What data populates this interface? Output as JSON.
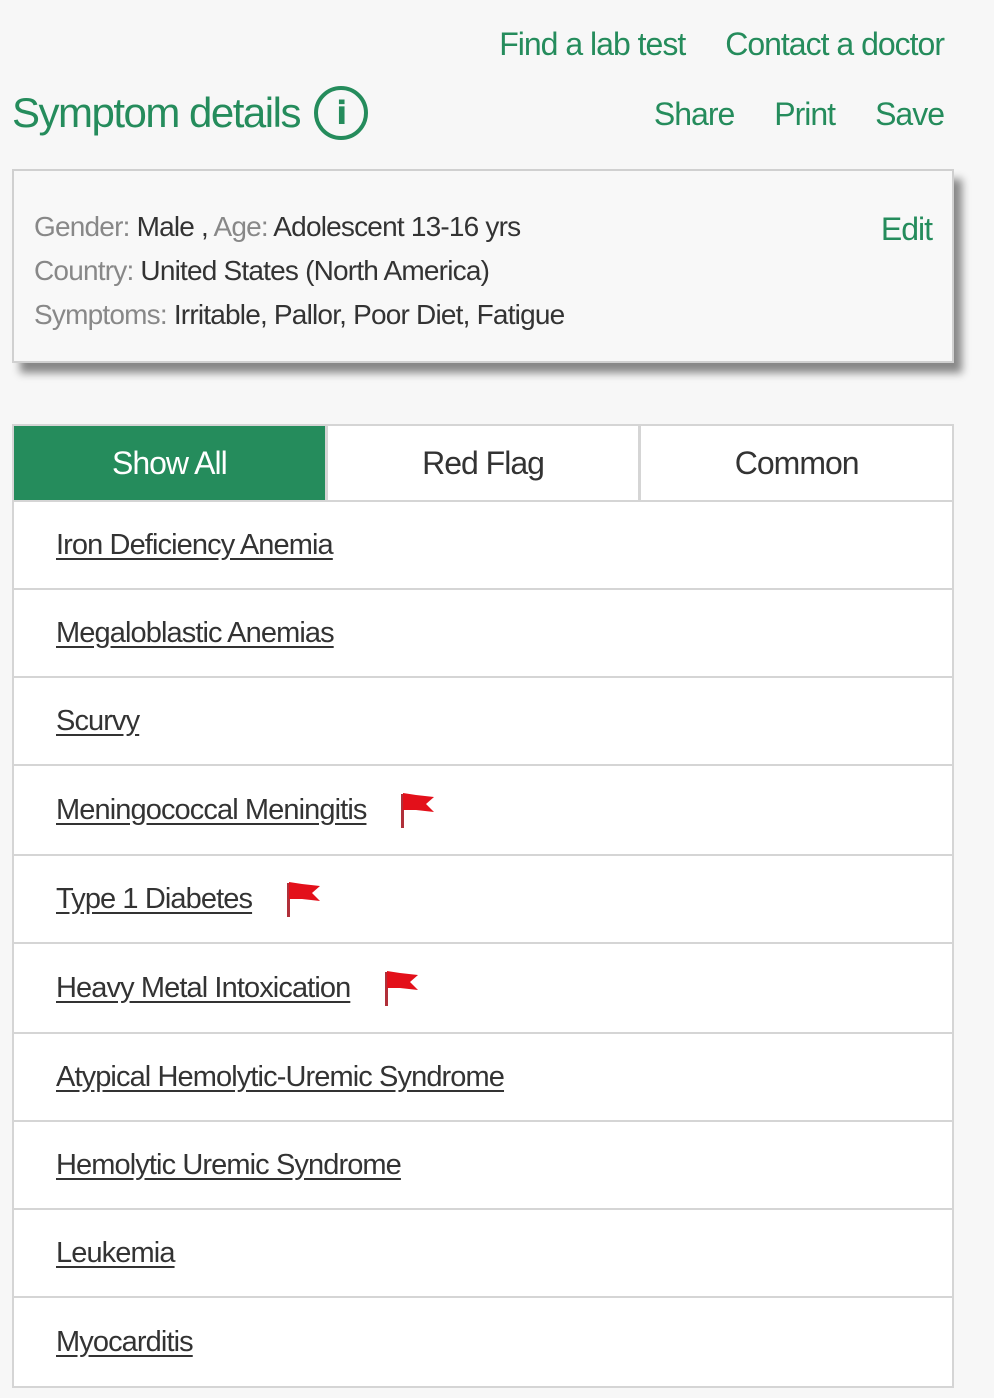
{
  "colors": {
    "accent": "#258c5c",
    "flag": "#e3101a",
    "text": "#333333",
    "label": "#888888"
  },
  "top_links": [
    "Find a lab test",
    "Contact a doctor"
  ],
  "header": {
    "title": "Symptom details",
    "info_icon": "info-circle-icon"
  },
  "actions": [
    "Share",
    "Print",
    "Save"
  ],
  "summary": {
    "gender_label": "Gender:",
    "gender": "Male ,",
    "age_label": "Age:",
    "age": "Adolescent 13-16 yrs",
    "country_label": "Country:",
    "country": "United States (North America)",
    "symptoms_label": "Symptoms:",
    "symptoms": "Irritable, Pallor, Poor Diet, Fatigue",
    "edit": "Edit"
  },
  "tabs": [
    {
      "label": "Show All",
      "active": true
    },
    {
      "label": "Red Flag",
      "active": false
    },
    {
      "label": "Common",
      "active": false
    }
  ],
  "conditions": [
    {
      "name": "Iron Deficiency Anemia",
      "red_flag": false
    },
    {
      "name": "Megaloblastic Anemias",
      "red_flag": false
    },
    {
      "name": "Scurvy",
      "red_flag": false
    },
    {
      "name": "Meningococcal Meningitis",
      "red_flag": true
    },
    {
      "name": "Type 1 Diabetes",
      "red_flag": true
    },
    {
      "name": "Heavy Metal Intoxication",
      "red_flag": true
    },
    {
      "name": "Atypical Hemolytic-Uremic Syndrome",
      "red_flag": false
    },
    {
      "name": "Hemolytic Uremic Syndrome",
      "red_flag": false
    },
    {
      "name": "Leukemia",
      "red_flag": false
    },
    {
      "name": "Myocarditis",
      "red_flag": false
    }
  ]
}
